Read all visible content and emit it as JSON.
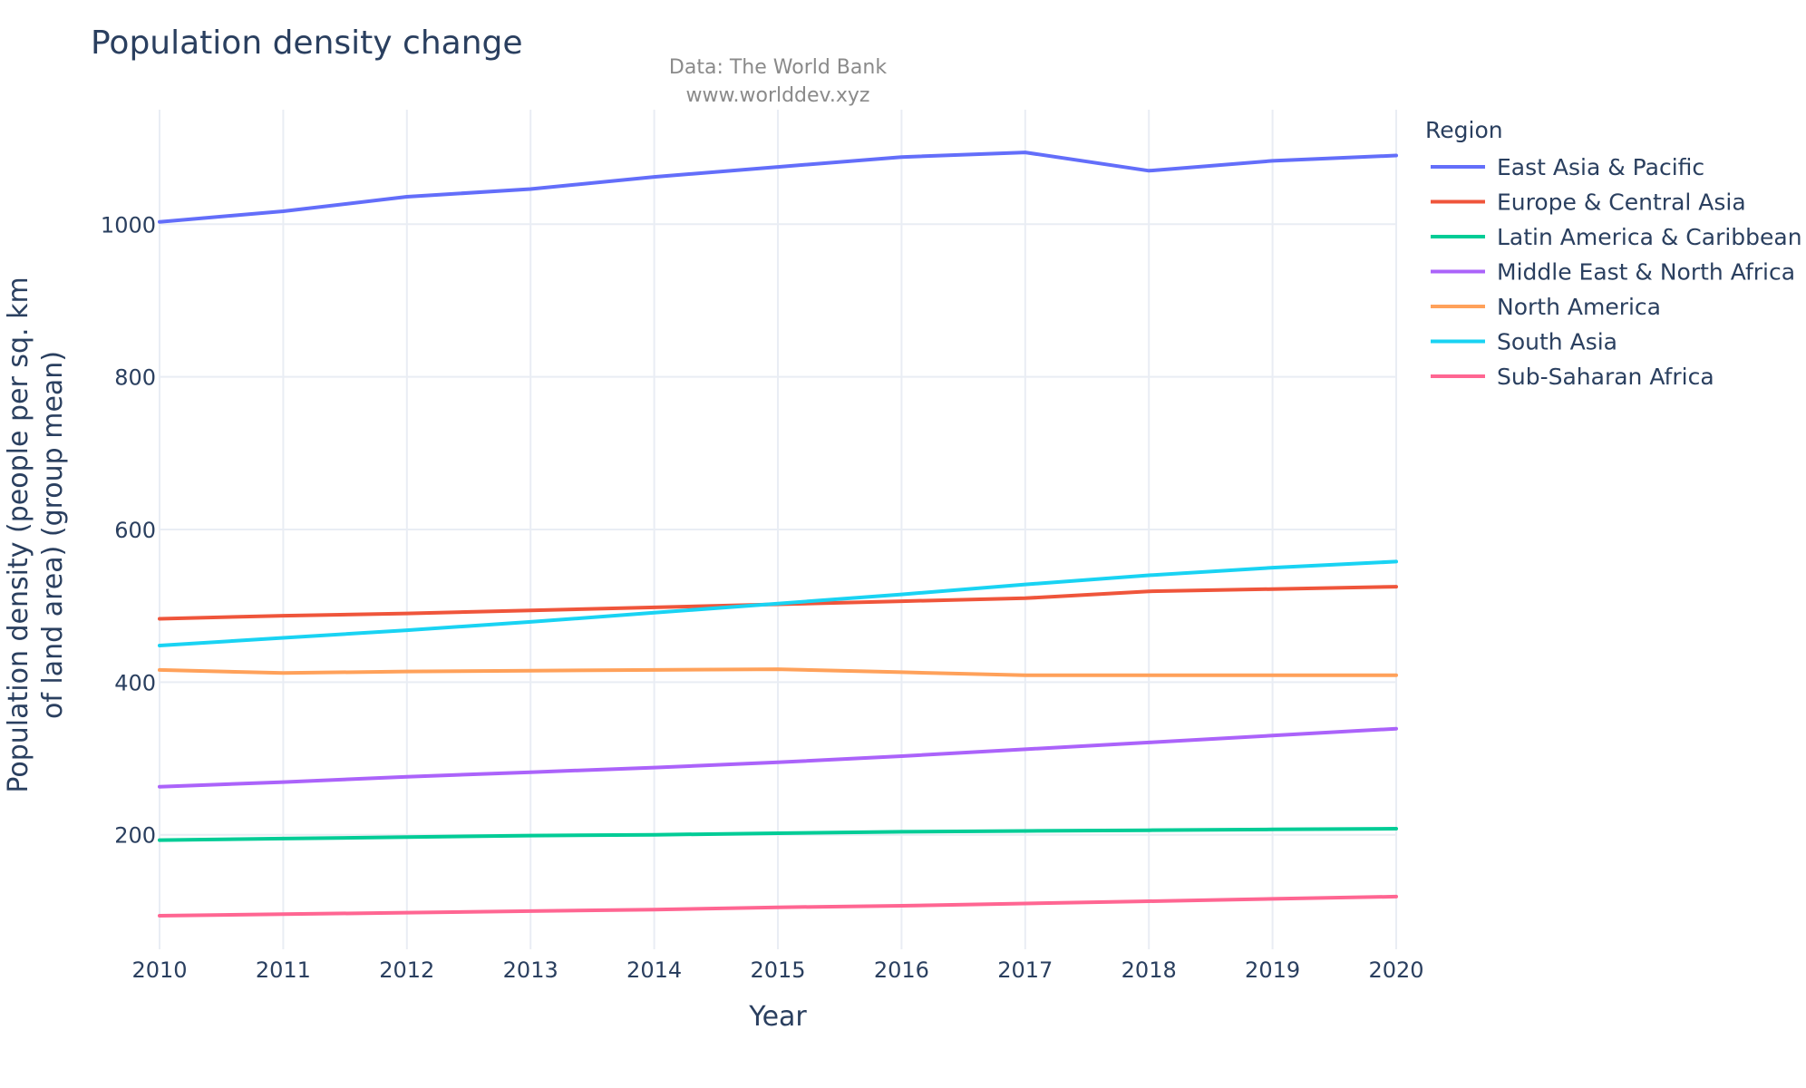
{
  "chart_data": {
    "type": "line",
    "title": "Population density change",
    "subtitle_lines": [
      "Data: The World Bank",
      "www.worlddev.xyz"
    ],
    "xlabel": "Year",
    "ylabel_lines": [
      "Population density (people per sq. km",
      "of land area) (group mean)"
    ],
    "x": [
      2010,
      2011,
      2012,
      2013,
      2014,
      2015,
      2016,
      2017,
      2018,
      2019,
      2020
    ],
    "xlim": [
      2010,
      2020
    ],
    "ylim": [
      50,
      1150
    ],
    "y_ticks": [
      200,
      400,
      600,
      800,
      1000
    ],
    "grid": true,
    "legend_title": "Region",
    "legend_position": "right",
    "series": [
      {
        "name": "East Asia & Pacific",
        "color": "#636efa",
        "values": [
          1003,
          1017,
          1036,
          1046,
          1062,
          1075,
          1088,
          1094,
          1070,
          1083,
          1090
        ]
      },
      {
        "name": "Europe & Central Asia",
        "color": "#ef553b",
        "values": [
          483,
          487,
          490,
          494,
          498,
          502,
          506,
          510,
          519,
          522,
          525
        ]
      },
      {
        "name": "Latin America & Caribbean",
        "color": "#00cc96",
        "values": [
          193,
          195,
          197,
          199,
          200,
          202,
          204,
          205,
          206,
          207,
          208
        ]
      },
      {
        "name": "Middle East & North Africa",
        "color": "#ab63fa",
        "values": [
          263,
          269,
          276,
          282,
          288,
          295,
          303,
          312,
          321,
          330,
          339
        ]
      },
      {
        "name": "North America",
        "color": "#ffa15a",
        "values": [
          416,
          412,
          414,
          415,
          416,
          417,
          413,
          409,
          409,
          409,
          409
        ]
      },
      {
        "name": "South Asia",
        "color": "#19d3f3",
        "values": [
          448,
          458,
          468,
          479,
          491,
          503,
          515,
          528,
          540,
          550,
          558
        ]
      },
      {
        "name": "Sub-Saharan Africa",
        "color": "#ff6692",
        "values": [
          94,
          96,
          98,
          100,
          102,
          105,
          107,
          110,
          113,
          116,
          119
        ]
      }
    ]
  }
}
